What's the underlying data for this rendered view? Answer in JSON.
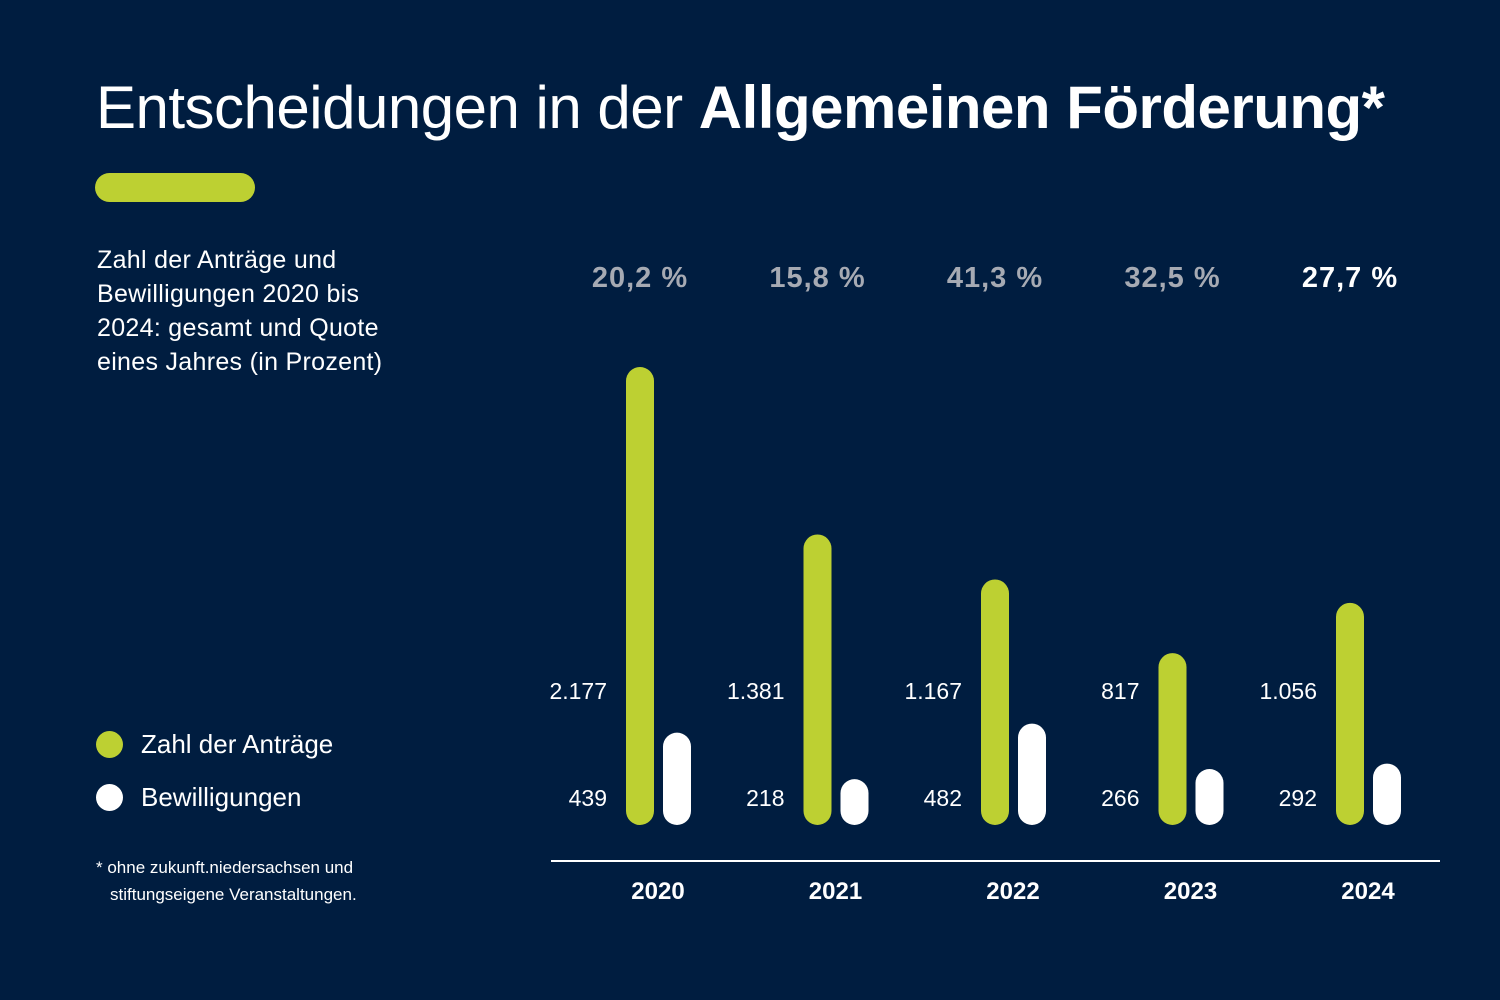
{
  "title": {
    "regular": "Entscheidungen in der",
    "bold": "Allgemeinen Förderung*"
  },
  "subtitle": "Zahl der Anträge und Bewilligungen 2020 bis 2024: gesamt und Quote eines Jahres (in Prozent)",
  "legend": [
    {
      "label": "Zahl der Anträge",
      "color": "#bdd032"
    },
    {
      "label": "Bewilligungen",
      "color": "#ffffff"
    }
  ],
  "footnote": {
    "line1": "* ohne zukunft.niedersachsen und",
    "line2": "stiftungseigene Veranstaltungen."
  },
  "colors": {
    "background": "#001d40",
    "antraege": "#bdd032",
    "bewilligungen": "#ffffff",
    "quote_muted": "#a6aab3",
    "quote_highlight": "#ffffff"
  },
  "chart_data": {
    "type": "bar",
    "title": "Entscheidungen in der Allgemeinen Förderung*",
    "categories": [
      "2020",
      "2021",
      "2022",
      "2023",
      "2024"
    ],
    "series": [
      {
        "name": "Zahl der Anträge",
        "values": [
          2177,
          1381,
          1167,
          817,
          1056
        ],
        "labels": [
          "2.177",
          "1.381",
          "1.167",
          "817",
          "1.056"
        ]
      },
      {
        "name": "Bewilligungen",
        "values": [
          439,
          218,
          482,
          266,
          292
        ],
        "labels": [
          "439",
          "218",
          "482",
          "266",
          "292"
        ]
      }
    ],
    "quote": {
      "labels": [
        "20,2 %",
        "15,8 %",
        "41,3 %",
        "32,5 %",
        "27,7 %"
      ],
      "highlight_index": 4
    },
    "ylim": [
      0,
      2177
    ]
  }
}
